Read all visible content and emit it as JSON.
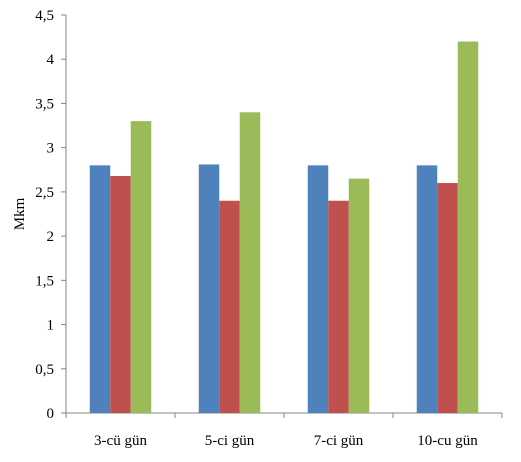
{
  "chart_data": {
    "type": "bar",
    "categories": [
      "3-cü gün",
      "5-ci gün",
      "7-ci gün",
      "10-cu gün"
    ],
    "series": [
      {
        "color": "#4F81BD",
        "values": [
          2.8,
          2.81,
          2.8,
          2.8
        ]
      },
      {
        "color": "#C0504D",
        "values": [
          2.68,
          2.4,
          2.4,
          2.6
        ]
      },
      {
        "color": "#9BBB59",
        "values": [
          3.3,
          3.4,
          2.65,
          4.2
        ]
      }
    ],
    "ylabel": "Mkm",
    "xlabel": "",
    "ylim": [
      0,
      4.5
    ],
    "yticks": [
      {
        "value": 0,
        "label": "0"
      },
      {
        "value": 0.5,
        "label": "0,5"
      },
      {
        "value": 1,
        "label": "1"
      },
      {
        "value": 1.5,
        "label": "1,5"
      },
      {
        "value": 2,
        "label": "2"
      },
      {
        "value": 2.5,
        "label": "2,5"
      },
      {
        "value": 3,
        "label": "3"
      },
      {
        "value": 3.5,
        "label": "3,5"
      },
      {
        "value": 4,
        "label": "4"
      },
      {
        "value": 4.5,
        "label": "4,5"
      }
    ],
    "grid": false,
    "legend": "none"
  }
}
